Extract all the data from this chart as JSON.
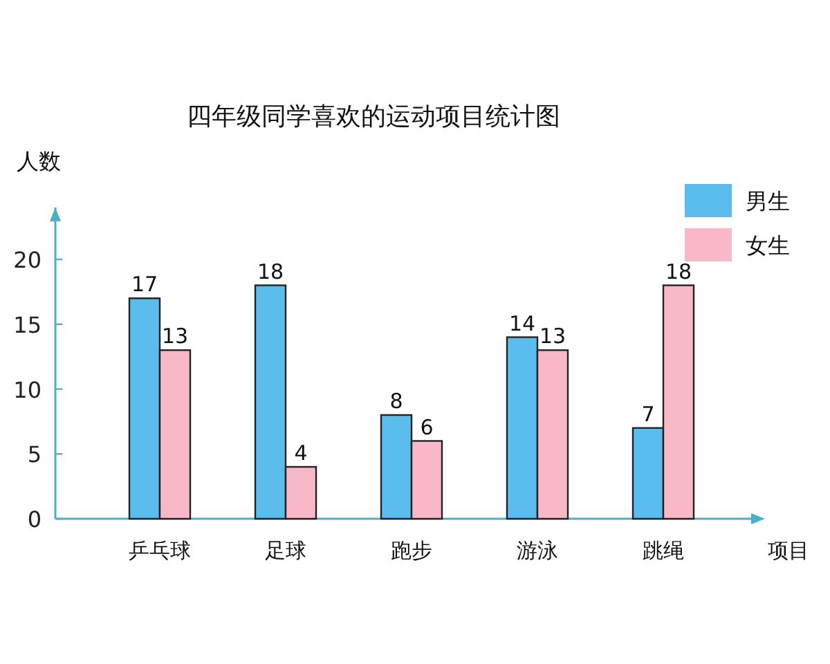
{
  "chart_data": {
    "type": "bar",
    "title": "四年级同学喜欢的运动项目统计图",
    "ylabel": "人数",
    "xlabel": "项目",
    "categories": [
      "乒乓球",
      "足球",
      "跑步",
      "游泳",
      "跳绳"
    ],
    "series": [
      {
        "name": "男生",
        "color": "#5bbcee",
        "values": [
          17,
          18,
          8,
          14,
          7
        ]
      },
      {
        "name": "女生",
        "color": "#f8b8c8",
        "values": [
          13,
          4,
          6,
          13,
          18
        ]
      }
    ],
    "ylim": [
      0,
      24
    ],
    "yticks": [
      0,
      5,
      10,
      15,
      20
    ],
    "data_labels": true,
    "legend": "top right"
  }
}
